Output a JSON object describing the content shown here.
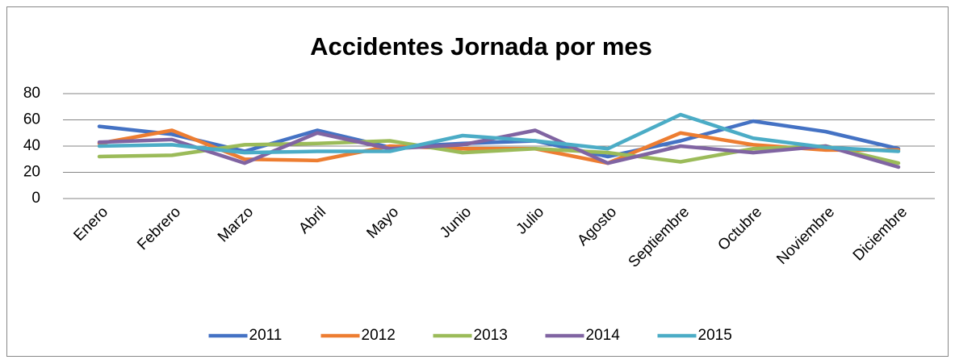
{
  "chart_data": {
    "type": "line",
    "title": "Accidentes Jornada por mes",
    "categories": [
      "Enero",
      "Febrero",
      "Marzo",
      "Abril",
      "Mayo",
      "Junio",
      "Julio",
      "Agosto",
      "Septiembre",
      "Octubre",
      "Noviembre",
      "Diciembre"
    ],
    "series": [
      {
        "name": "2011",
        "color": "#4472c4",
        "values": [
          55,
          49,
          36,
          52,
          39,
          42,
          44,
          32,
          44,
          59,
          51,
          38
        ]
      },
      {
        "name": "2012",
        "color": "#ed7d31",
        "values": [
          42,
          52,
          30,
          29,
          40,
          38,
          38,
          27,
          50,
          41,
          37,
          37
        ]
      },
      {
        "name": "2013",
        "color": "#9bbb59",
        "values": [
          32,
          33,
          41,
          42,
          44,
          35,
          38,
          35,
          28,
          38,
          40,
          27
        ]
      },
      {
        "name": "2014",
        "color": "#8064a2",
        "values": [
          43,
          45,
          27,
          50,
          38,
          41,
          52,
          27,
          40,
          35,
          40,
          24
        ]
      },
      {
        "name": "2015",
        "color": "#4bacc6",
        "values": [
          40,
          41,
          35,
          36,
          36,
          48,
          44,
          38,
          64,
          46,
          39,
          36
        ]
      }
    ],
    "ylim": [
      0,
      80
    ],
    "yticks": [
      0,
      20,
      40,
      60,
      80
    ],
    "grid": true,
    "legend": "bottom"
  }
}
